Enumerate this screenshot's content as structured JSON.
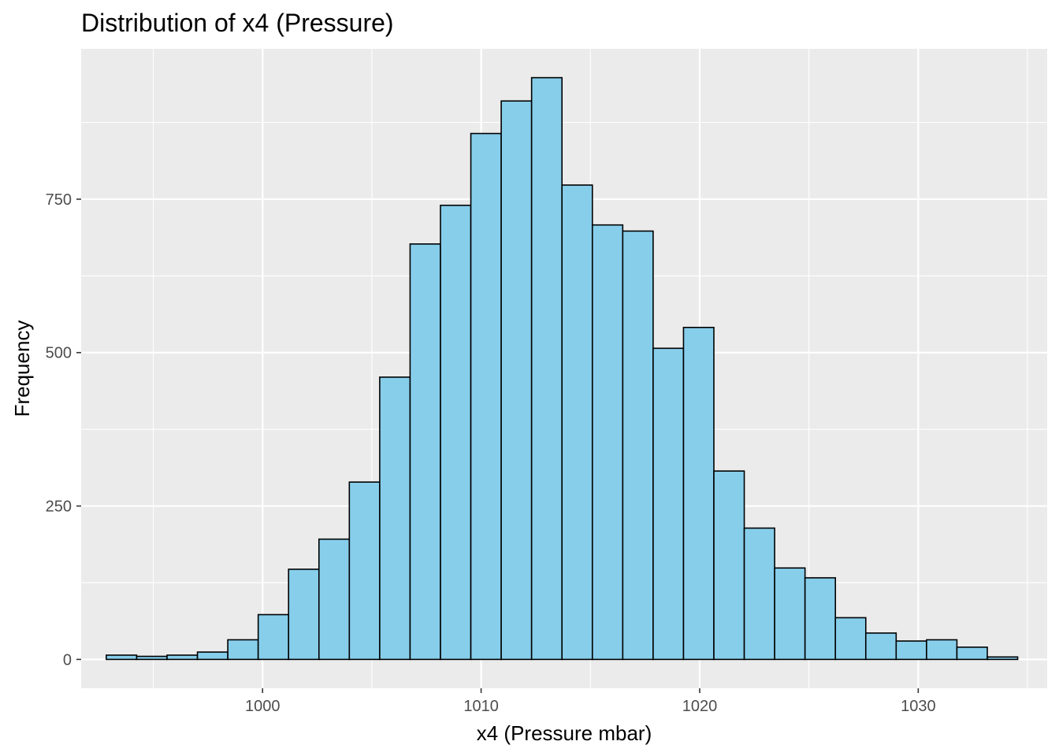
{
  "chart_data": {
    "type": "bar",
    "title": "Distribution of x4 (Pressure)",
    "xlabel": "x4 (Pressure mbar)",
    "ylabel": "Frequency",
    "x_ticks": [
      1000,
      1010,
      1020,
      1030
    ],
    "y_ticks": [
      0,
      250,
      500,
      750
    ],
    "xlim": [
      991.7,
      1035.9
    ],
    "ylim": [
      -47,
      995
    ],
    "bin_width": 1.39,
    "bin_start": 992.85,
    "values": [
      7,
      5,
      7,
      12,
      32,
      73,
      147,
      196,
      289,
      460,
      677,
      740,
      857,
      910,
      948,
      773,
      708,
      698,
      507,
      541,
      307,
      214,
      149,
      133,
      68,
      43,
      30,
      32,
      20,
      4
    ],
    "grid": true,
    "legend": "none",
    "colors": {
      "bar_fill": "#87ceeb",
      "bar_stroke": "#000000",
      "panel_background": "#ebebeb",
      "grid_line": "#ffffff",
      "tick_label": "#4d4d4d"
    }
  }
}
